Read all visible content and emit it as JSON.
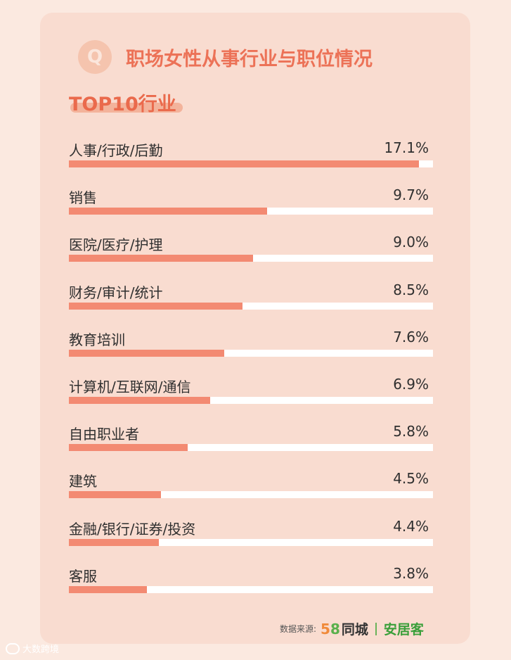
{
  "header": {
    "badge": "Q",
    "title": "职场女性从事行业与职位情况",
    "subtitle": "TOP10行业"
  },
  "colors": {
    "background": "#fbe9e0",
    "card": "#f9dcd0",
    "accent": "#ec7257",
    "bar": "#f38a72",
    "track": "#ffffff"
  },
  "chart_data": {
    "type": "bar",
    "title": "TOP10行业",
    "categories": [
      "人事/行政/后勤",
      "销售",
      "医院/医疗/护理",
      "财务/审计/统计",
      "教育培训",
      "计算机/互联网/通信",
      "自由职业者",
      "建筑",
      "金融/银行/证券/投资",
      "客服"
    ],
    "values": [
      17.1,
      9.7,
      9.0,
      8.5,
      7.6,
      6.9,
      5.8,
      4.5,
      4.4,
      3.8
    ],
    "value_labels": [
      "17.1%",
      "9.7%",
      "9.0%",
      "8.5%",
      "7.6%",
      "6.9%",
      "5.8%",
      "4.5%",
      "4.4%",
      "3.8%"
    ],
    "orientation": "horizontal",
    "xlim": [
      0,
      17.8
    ]
  },
  "footer": {
    "source_label": "数据来源:",
    "brand_5": "5",
    "brand_8": "8",
    "brand_tongcheng": "同城",
    "brand_anjuke": "安居客"
  },
  "watermark": {
    "text": "大数跨境",
    "icon": "logo-mark-icon"
  }
}
